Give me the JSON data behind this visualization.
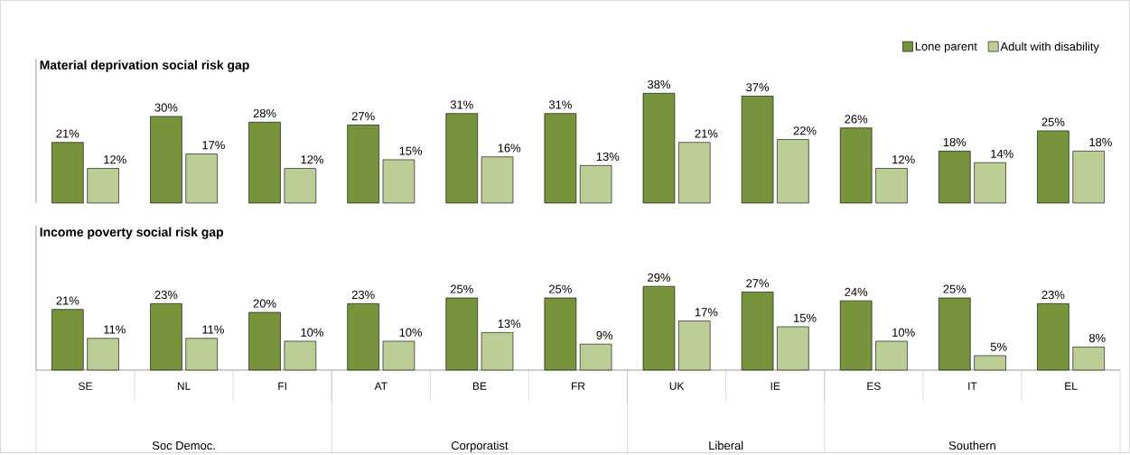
{
  "chart_data": [
    {
      "type": "bar",
      "title": "Material deprivation social risk  gap",
      "categories": [
        null,
        null,
        null,
        null,
        null,
        null,
        null,
        null,
        null,
        null,
        null
      ],
      "ylim": [
        0,
        50
      ],
      "tick_labels": false,
      "legend": "top right",
      "series": [
        {
          "name": "Lone parent",
          "color": "#77933c",
          "values": [
            21,
            30,
            28,
            27,
            31,
            31,
            38,
            37,
            26,
            18,
            25
          ],
          "value_labels": [
            "21%",
            "30%",
            "28%",
            "27%",
            "31%",
            "31%",
            "38%",
            "37%",
            "26%",
            "18%",
            "25%"
          ]
        },
        {
          "name": "Adult with disability",
          "color": "#bccd95",
          "values": [
            12,
            17,
            12,
            15,
            16,
            13,
            21,
            22,
            12,
            14,
            18
          ],
          "value_labels": [
            "12%",
            "17%",
            "12%",
            "15%",
            "16%",
            "13%",
            "21%",
            "22%",
            "12%",
            "14%",
            "18%"
          ]
        }
      ]
    },
    {
      "type": "bar",
      "title": "Income poverty social risk gap",
      "categories": [
        "SE",
        "NL",
        "FI",
        "AT",
        "BE",
        "FR",
        "UK",
        "IE",
        "ES",
        "IT",
        "EL"
      ],
      "ylim": [
        0,
        50
      ],
      "tick_labels": "x",
      "annotations": [
        "Soc Democ.",
        "Corporatist",
        "Liberal",
        "Southern"
      ],
      "series": [
        {
          "color": "#77933c",
          "values": [
            21,
            23,
            20,
            23,
            25,
            25,
            29,
            27,
            24,
            25,
            23
          ],
          "value_labels": [
            "21%",
            "23%",
            "20%",
            "23%",
            "25%",
            "25%",
            "29%",
            "27%",
            "24%",
            "25%",
            "23%"
          ]
        },
        {
          "color": "#bccd95",
          "values": [
            11,
            11,
            10,
            10,
            13,
            9,
            17,
            15,
            10,
            5,
            8
          ],
          "value_labels": [
            "11%",
            "11%",
            "10%",
            "10%",
            "13%",
            "9%",
            "17%",
            "15%",
            "10%",
            "5%",
            "8%"
          ]
        }
      ]
    }
  ]
}
